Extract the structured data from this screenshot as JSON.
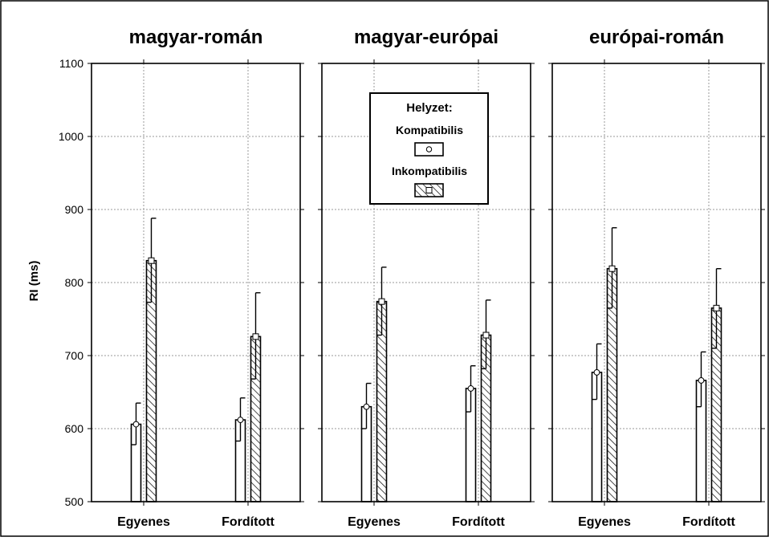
{
  "chart_data": {
    "type": "bar",
    "title": "",
    "ylabel": "RI (ms)",
    "xlabel": "",
    "ylim": [
      500,
      1100
    ],
    "yticks": [
      500,
      600,
      700,
      800,
      900,
      1000,
      1100
    ],
    "grid": true,
    "legend": {
      "title": "Helyzet:",
      "placement": "top-center",
      "entries": [
        "Kompatibilis",
        "Inkompatibilis"
      ]
    },
    "categories": [
      "Egyenes",
      "Fordított"
    ],
    "series_styles": {
      "Kompatibilis": {
        "fill": "#ffffff",
        "hatch": false,
        "marker": "circle"
      },
      "Inkompatibilis": {
        "fill": "#ffffff",
        "hatch": true,
        "marker": "square"
      }
    },
    "panels": [
      {
        "title": "magyar-román",
        "series": [
          {
            "name": "Kompatibilis",
            "values": [
              606,
              612
            ],
            "lower": [
              578,
              583
            ],
            "upper": [
              635,
              642
            ]
          },
          {
            "name": "Inkompatibilis",
            "values": [
              830,
              726
            ],
            "lower": [
              773,
              668
            ],
            "upper": [
              888,
              786
            ]
          }
        ]
      },
      {
        "title": "magyar-európai",
        "series": [
          {
            "name": "Kompatibilis",
            "values": [
              630,
              655
            ],
            "lower": [
              600,
              623
            ],
            "upper": [
              662,
              686
            ]
          },
          {
            "name": "Inkompatibilis",
            "values": [
              774,
              728
            ],
            "lower": [
              728,
              682
            ],
            "upper": [
              821,
              776
            ]
          }
        ]
      },
      {
        "title": "európai-román",
        "series": [
          {
            "name": "Kompatibilis",
            "values": [
              677,
              666
            ],
            "lower": [
              640,
              630
            ],
            "upper": [
              716,
              705
            ]
          },
          {
            "name": "Inkompatibilis",
            "values": [
              819,
              765
            ],
            "lower": [
              765,
              710
            ],
            "upper": [
              875,
              819
            ]
          }
        ]
      }
    ]
  }
}
